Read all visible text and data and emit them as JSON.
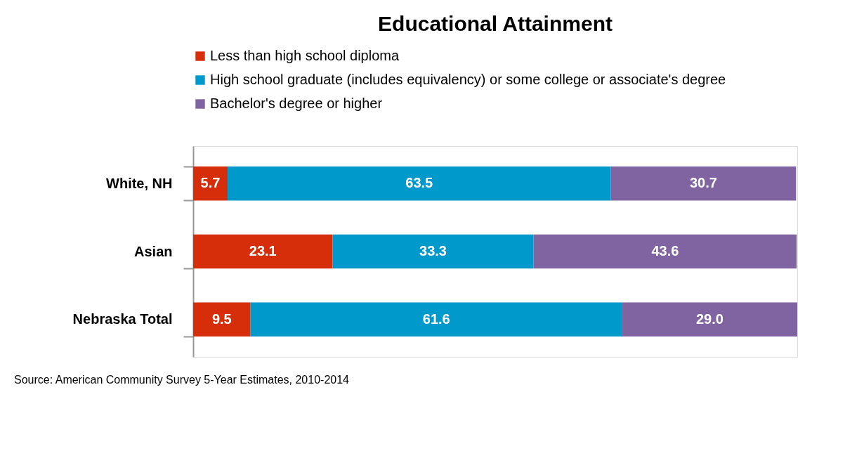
{
  "chart_data": {
    "type": "bar",
    "title": "Educational Attainment",
    "orientation": "horizontal",
    "stacked": true,
    "categories": [
      "White, NH",
      "Asian",
      "Nebraska Total"
    ],
    "series": [
      {
        "name": "Less than high school diploma",
        "color": "#d62e0a",
        "values": [
          5.7,
          23.1,
          9.5
        ],
        "value_labels": [
          "5.7",
          "23.1",
          "9.5"
        ]
      },
      {
        "name": "High school graduate (includes equivalency) or some college or associate's degree",
        "color": "#0099cc",
        "values": [
          63.5,
          33.3,
          61.6
        ],
        "value_labels": [
          "63.5",
          "33.3",
          "61.6"
        ]
      },
      {
        "name": "Bachelor's degree or higher",
        "color": "#8064a2",
        "values": [
          30.7,
          43.6,
          29.0
        ],
        "value_labels": [
          "30.7",
          "43.6",
          "29.0"
        ]
      }
    ],
    "legend": "top",
    "tick_labels": "y",
    "annotations": [
      "Source: American Community Survey 5-Year Estimates, 2010-2014"
    ]
  }
}
